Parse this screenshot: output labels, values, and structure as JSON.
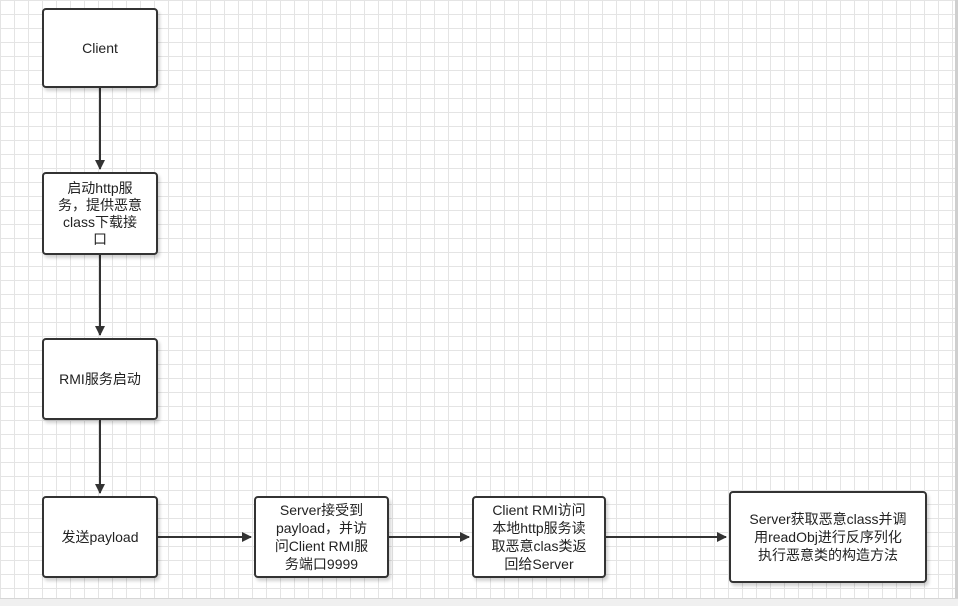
{
  "diagram": {
    "nodes": {
      "client": "Client",
      "start_http": "启动http服\n务，提供恶意\nclass下载接\n口",
      "rmi_start": "RMI服务启动",
      "send_payload": "发送payload",
      "server_receive": "Server接受到\npayload，并访\n问Client RMI服\n务端口9999",
      "client_rmi_access": "Client RMI访问\n本地http服务读\n取恶意clas类返\n回给Server",
      "server_fetch": "Server获取恶意class并调\n用readObj进行反序列化\n执行恶意类的构造方法"
    },
    "edges": [
      {
        "from": "client",
        "to": "start_http"
      },
      {
        "from": "start_http",
        "to": "rmi_start"
      },
      {
        "from": "rmi_start",
        "to": "send_payload"
      },
      {
        "from": "send_payload",
        "to": "server_receive"
      },
      {
        "from": "server_receive",
        "to": "client_rmi_access"
      },
      {
        "from": "client_rmi_access",
        "to": "server_fetch"
      }
    ],
    "line_color": "#333333"
  }
}
